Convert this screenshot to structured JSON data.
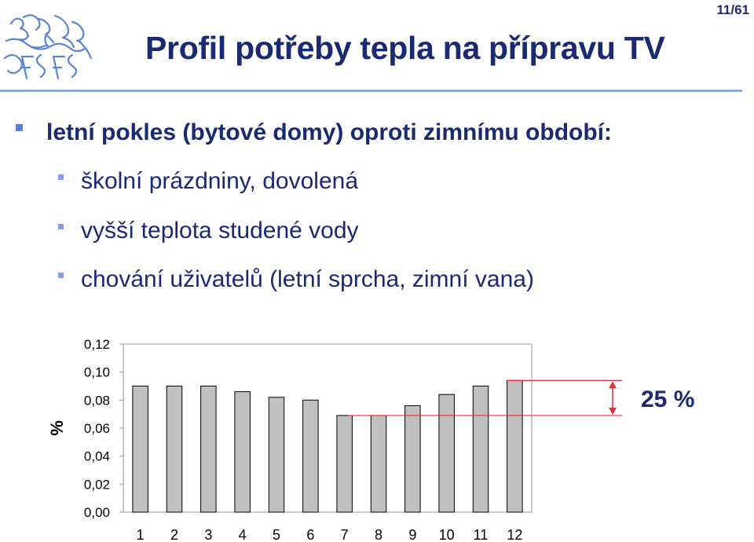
{
  "header": {
    "page_number": "11/61",
    "title": "Profil potřeby tepla na přípravu TV",
    "logo_icon": "czech-lion-university-logo"
  },
  "bullets": {
    "main": "letní pokles (bytové domy) oproti zimnímu období:",
    "sub": [
      "školní prázdniny, dovolená",
      "vyšší teplota studené vody",
      "chování uživatelů (letní sprcha, zimní vana)"
    ]
  },
  "colors": {
    "title": "#1a2a72",
    "rule": "#8fa6d8",
    "bullet": "#5b7fd0",
    "bar_fill": "#c0c0c0",
    "annotation": "#e0303a"
  },
  "chart_data": {
    "type": "bar",
    "categories": [
      "1",
      "2",
      "3",
      "4",
      "5",
      "6",
      "7",
      "8",
      "9",
      "10",
      "11",
      "12"
    ],
    "values": [
      0.09,
      0.09,
      0.09,
      0.086,
      0.082,
      0.08,
      0.069,
      0.069,
      0.076,
      0.084,
      0.09,
      0.094
    ],
    "ylabel": "%",
    "xlabel": "",
    "ylim": [
      0,
      0.12
    ],
    "yticks": [
      "0,00",
      "0,02",
      "0,04",
      "0,06",
      "0,08",
      "0,10",
      "0,12"
    ],
    "grid": false,
    "annotation": {
      "text": "25 %",
      "upper_value": 0.094,
      "lower_value": 0.069
    }
  }
}
